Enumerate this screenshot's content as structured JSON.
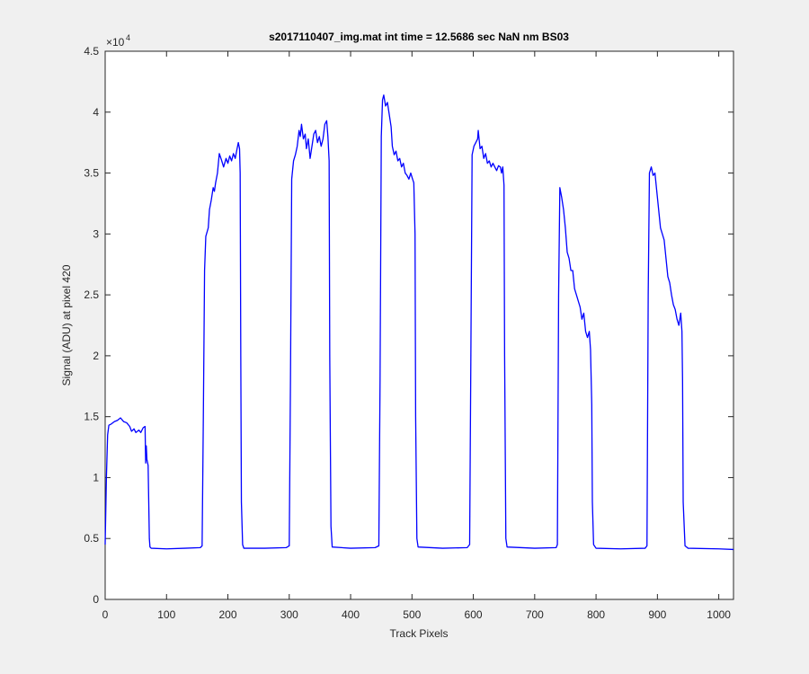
{
  "chart_data": {
    "type": "line",
    "title": "s2017110407_img.mat int time = 12.5686 sec  NaN nm BS03",
    "x_label": "Track Pixels",
    "y_label": "Signal (ADU) at pixel 420",
    "y_exponent": {
      "base": "×10",
      "power": "4"
    },
    "color": "#0000ff",
    "xlim": [
      0,
      1024
    ],
    "ylim": [
      0,
      4.5
    ],
    "xticks": [
      0,
      100,
      200,
      300,
      400,
      500,
      600,
      700,
      800,
      900,
      1000
    ],
    "yticks": [
      0,
      0.5,
      1,
      1.5,
      2,
      2.5,
      3,
      3.5,
      4,
      4.5
    ],
    "x": [
      0,
      2,
      4,
      6,
      10,
      15,
      20,
      25,
      30,
      35,
      40,
      43,
      47,
      50,
      55,
      58,
      62,
      65,
      66,
      67,
      68,
      70,
      71,
      72,
      73,
      75,
      100,
      130,
      155,
      158,
      160,
      162,
      164,
      168,
      170,
      173,
      176,
      178,
      180,
      183,
      186,
      190,
      193,
      197,
      200,
      203,
      206,
      209,
      212,
      215,
      217,
      219,
      220,
      221,
      222,
      224,
      226,
      260,
      295,
      300,
      302,
      304,
      307,
      310,
      313,
      316,
      318,
      320,
      323,
      326,
      328,
      331,
      334,
      337,
      340,
      343,
      346,
      349,
      352,
      355,
      358,
      361,
      363,
      365,
      366,
      368,
      370,
      400,
      440,
      446,
      448,
      450,
      452,
      454,
      457,
      460,
      463,
      466,
      468,
      471,
      474,
      477,
      480,
      483,
      486,
      489,
      492,
      495,
      498,
      501,
      503,
      505,
      506,
      508,
      510,
      550,
      590,
      594,
      596,
      598,
      601,
      604,
      607,
      608,
      611,
      614,
      617,
      620,
      623,
      626,
      629,
      632,
      635,
      638,
      641,
      644,
      646,
      648,
      650,
      651,
      653,
      655,
      700,
      735,
      737,
      739,
      741,
      744,
      747,
      750,
      753,
      756,
      759,
      762,
      765,
      768,
      771,
      774,
      777,
      780,
      783,
      786,
      789,
      791,
      793,
      794,
      796,
      800,
      840,
      880,
      883,
      885,
      887,
      890,
      893,
      896,
      899,
      902,
      905,
      908,
      911,
      914,
      917,
      920,
      923,
      926,
      929,
      932,
      935,
      938,
      940,
      941,
      942,
      945,
      950,
      1000,
      1024
    ],
    "values": [
      0.45,
      1.0,
      1.35,
      1.43,
      1.44,
      1.46,
      1.47,
      1.49,
      1.46,
      1.45,
      1.42,
      1.38,
      1.4,
      1.37,
      1.39,
      1.37,
      1.41,
      1.42,
      1.12,
      1.26,
      1.15,
      1.1,
      0.8,
      0.5,
      0.43,
      0.42,
      0.415,
      0.42,
      0.425,
      0.44,
      1.5,
      2.7,
      2.98,
      3.05,
      3.2,
      3.28,
      3.38,
      3.35,
      3.42,
      3.5,
      3.66,
      3.6,
      3.55,
      3.62,
      3.58,
      3.64,
      3.6,
      3.66,
      3.62,
      3.7,
      3.75,
      3.7,
      3.5,
      2.0,
      0.8,
      0.45,
      0.42,
      0.42,
      0.425,
      0.44,
      1.8,
      3.45,
      3.6,
      3.65,
      3.72,
      3.85,
      3.8,
      3.9,
      3.78,
      3.82,
      3.7,
      3.78,
      3.62,
      3.72,
      3.82,
      3.85,
      3.75,
      3.8,
      3.72,
      3.78,
      3.9,
      3.93,
      3.8,
      3.6,
      2.0,
      0.6,
      0.43,
      0.42,
      0.425,
      0.44,
      1.8,
      3.8,
      4.1,
      4.14,
      4.05,
      4.08,
      3.98,
      3.88,
      3.72,
      3.65,
      3.68,
      3.6,
      3.62,
      3.55,
      3.58,
      3.5,
      3.48,
      3.45,
      3.5,
      3.45,
      3.42,
      3.0,
      1.5,
      0.5,
      0.43,
      0.42,
      0.425,
      0.45,
      2.0,
      3.65,
      3.72,
      3.75,
      3.78,
      3.85,
      3.7,
      3.72,
      3.62,
      3.66,
      3.58,
      3.6,
      3.55,
      3.58,
      3.55,
      3.52,
      3.56,
      3.55,
      3.5,
      3.55,
      3.4,
      2.0,
      0.5,
      0.43,
      0.42,
      0.425,
      0.45,
      2.5,
      3.38,
      3.3,
      3.2,
      3.05,
      2.85,
      2.8,
      2.7,
      2.7,
      2.55,
      2.5,
      2.45,
      2.4,
      2.3,
      2.35,
      2.2,
      2.15,
      2.2,
      2.05,
      1.6,
      0.8,
      0.45,
      0.42,
      0.415,
      0.42,
      0.44,
      2.5,
      3.5,
      3.55,
      3.48,
      3.5,
      3.35,
      3.2,
      3.05,
      3.0,
      2.95,
      2.8,
      2.65,
      2.6,
      2.5,
      2.42,
      2.38,
      2.3,
      2.25,
      2.35,
      2.2,
      1.8,
      0.8,
      0.44,
      0.42,
      0.415,
      0.41
    ]
  }
}
